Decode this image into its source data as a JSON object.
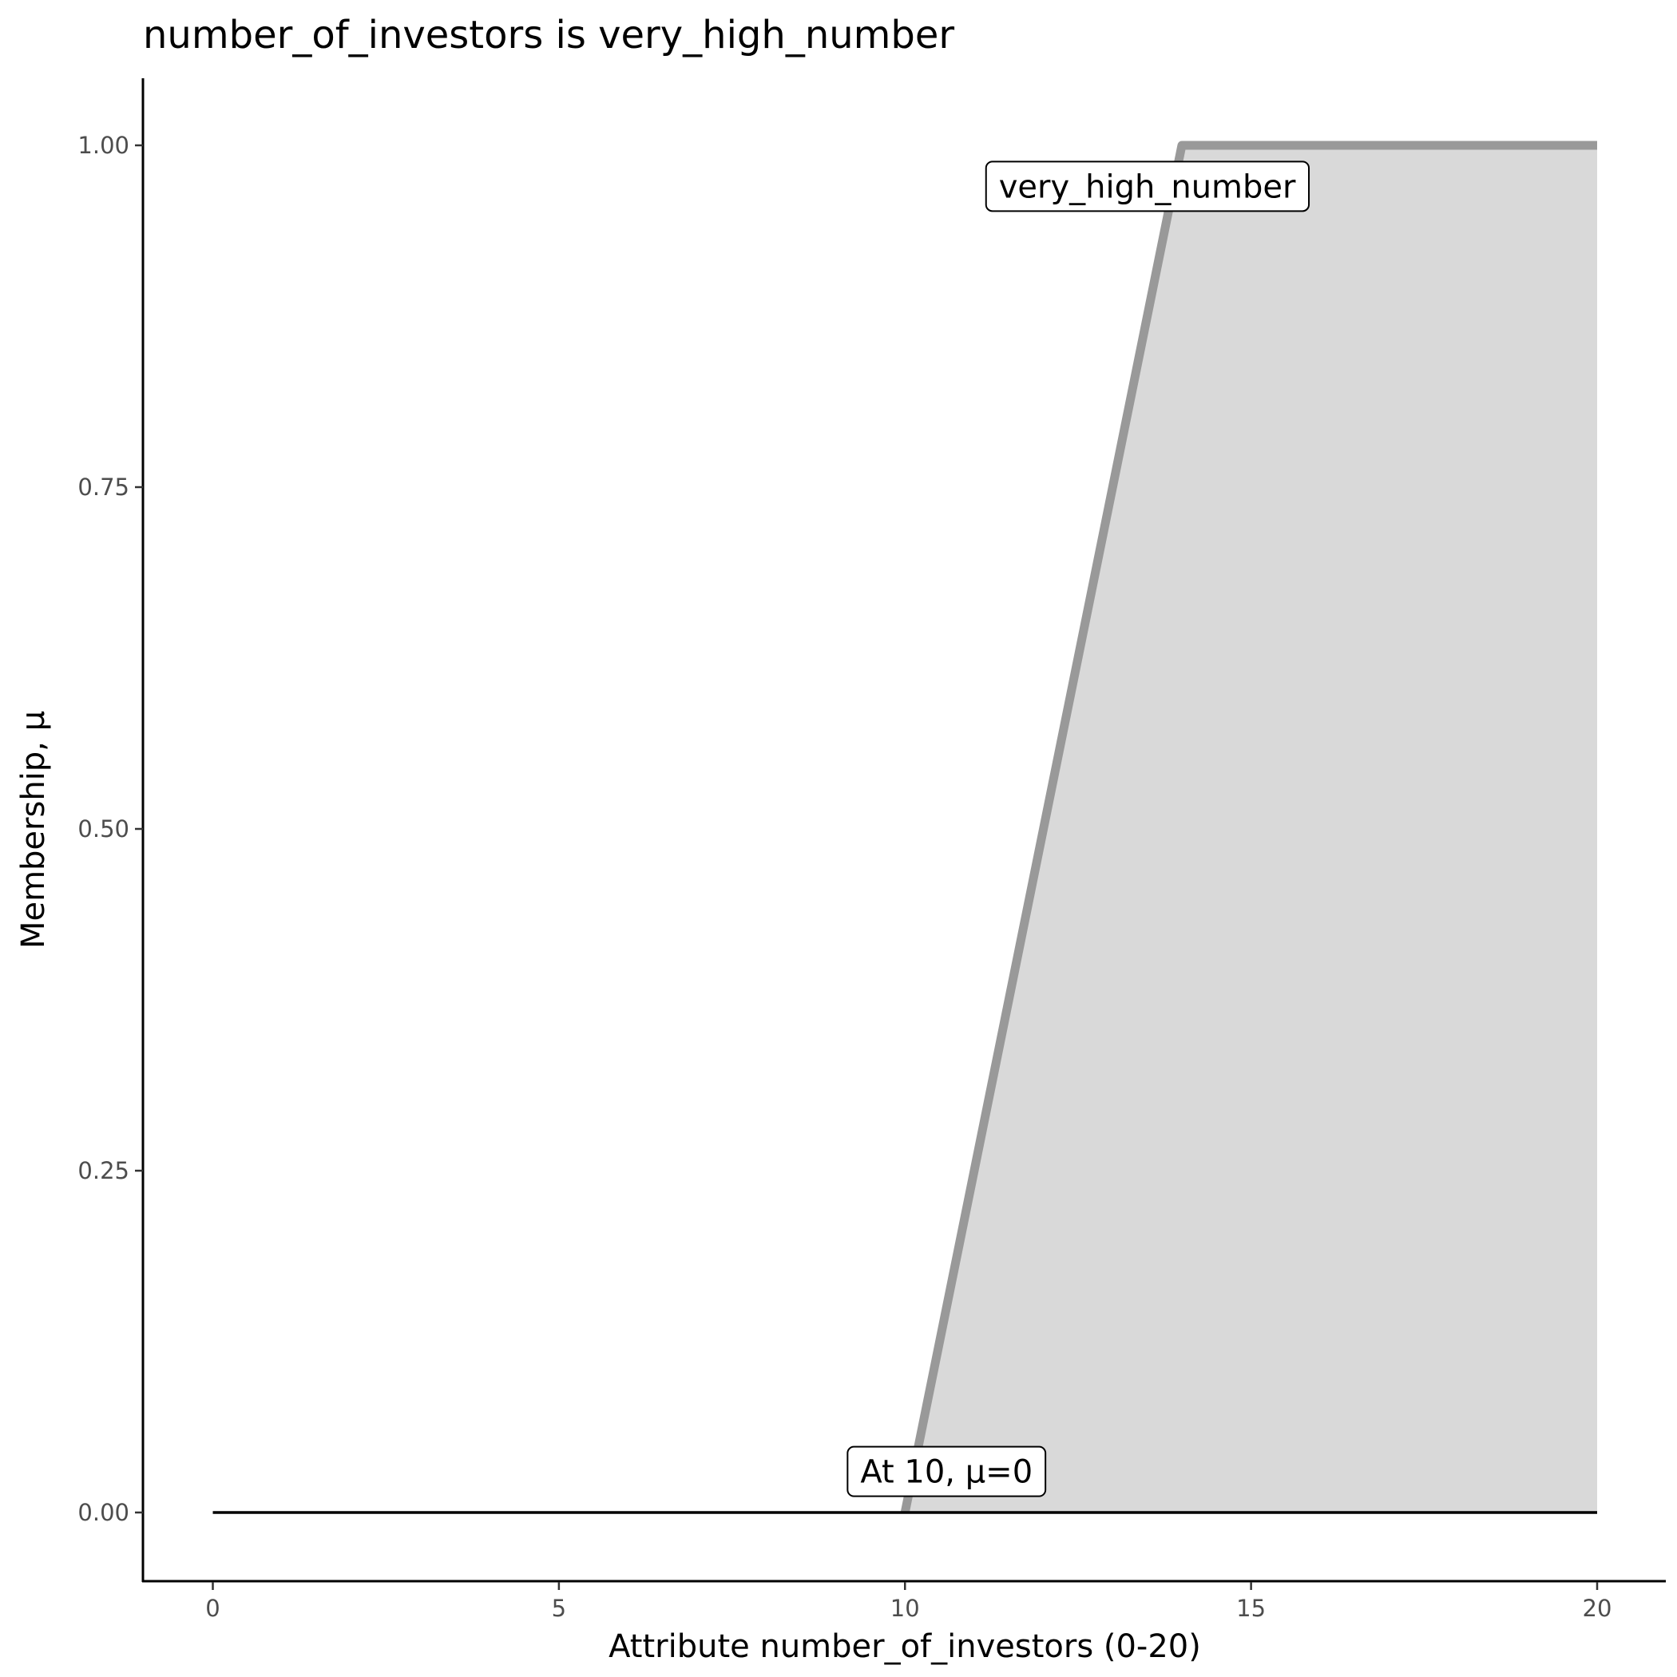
{
  "chart_data": {
    "type": "area",
    "title": "number_of_investors is very_high_number",
    "xlabel": "Attribute number_of_investors (0-20)",
    "ylabel": "Membership, μ",
    "xlim": [
      -1,
      21
    ],
    "ylim": [
      -0.05,
      1.05
    ],
    "xticks": [
      0,
      5,
      10,
      15,
      20
    ],
    "xtick_labels": [
      "0",
      "5",
      "10",
      "15",
      "20"
    ],
    "yticks": [
      0,
      0.25,
      0.5,
      0.75,
      1
    ],
    "ytick_labels": [
      "0.00",
      "0.25",
      "0.50",
      "0.75",
      "1.00"
    ],
    "grid": false,
    "series": [
      {
        "x": [
          10,
          14,
          20
        ],
        "y": [
          0,
          1,
          1
        ],
        "color": "#999999",
        "fill": "#d9d9d9"
      }
    ],
    "baseline": {
      "x": [
        0,
        20
      ],
      "y": [
        0,
        0
      ],
      "color": "#000000"
    },
    "annotations": [
      {
        "text": "very_high_number",
        "x": 13.5,
        "y": 0.97
      },
      {
        "text": "At 10, μ=0",
        "x": 10.6,
        "y": 0.03
      }
    ]
  }
}
